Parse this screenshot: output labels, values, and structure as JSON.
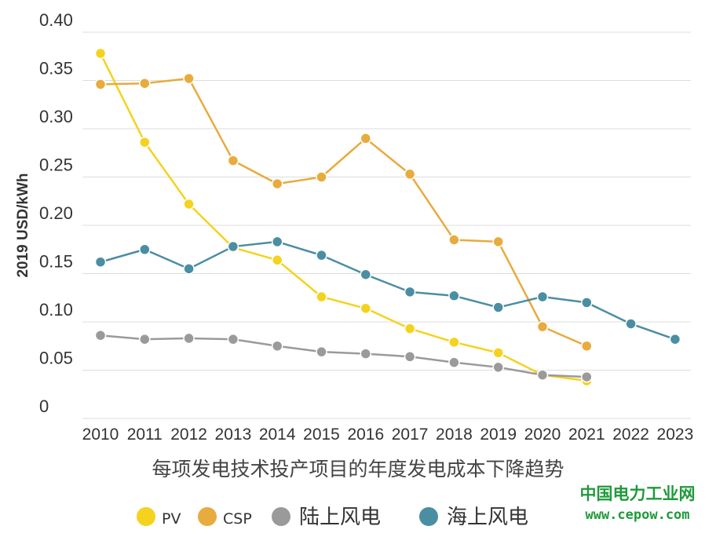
{
  "chart_data": {
    "type": "line",
    "title": "每项发电技术投产项目的年度发电成本下降趋势",
    "xlabel": "",
    "ylabel": "2019 USD/kWh",
    "ylim": [
      0,
      0.4
    ],
    "yticks": [
      "0",
      "0.05",
      "0.10",
      "0.15",
      "0.20",
      "0.25",
      "0.30",
      "0.35",
      "0.40"
    ],
    "categories": [
      "2010",
      "2011",
      "2012",
      "2013",
      "2014",
      "2015",
      "2016",
      "2017",
      "2018",
      "2019",
      "2020",
      "2021",
      "2022",
      "2023"
    ],
    "grid": true,
    "legend_position": "bottom",
    "series": [
      {
        "name": "PV",
        "color": "#f5d21e",
        "values": [
          0.378,
          0.286,
          0.222,
          0.177,
          0.164,
          0.126,
          0.114,
          0.093,
          0.079,
          0.068,
          0.045,
          0.039,
          null,
          null
        ]
      },
      {
        "name": "CSP",
        "color": "#e8ab3d",
        "values": [
          0.346,
          0.347,
          0.352,
          0.267,
          0.243,
          0.25,
          0.29,
          0.253,
          0.185,
          0.183,
          0.095,
          0.075,
          null,
          null
        ]
      },
      {
        "name": "陆上风电",
        "color": "#9a9a9a",
        "values": [
          0.086,
          0.082,
          0.083,
          0.082,
          0.075,
          0.069,
          0.067,
          0.064,
          0.058,
          0.053,
          0.045,
          0.043,
          null,
          null
        ]
      },
      {
        "name": "海上风电",
        "color": "#4a8ea3",
        "values": [
          0.162,
          0.175,
          0.155,
          0.178,
          0.183,
          0.169,
          0.149,
          0.131,
          0.127,
          0.115,
          0.126,
          0.12,
          0.098,
          0.082
        ]
      }
    ]
  },
  "watermark": {
    "name": "中国电力工业网",
    "url": "www.cepow.com"
  }
}
